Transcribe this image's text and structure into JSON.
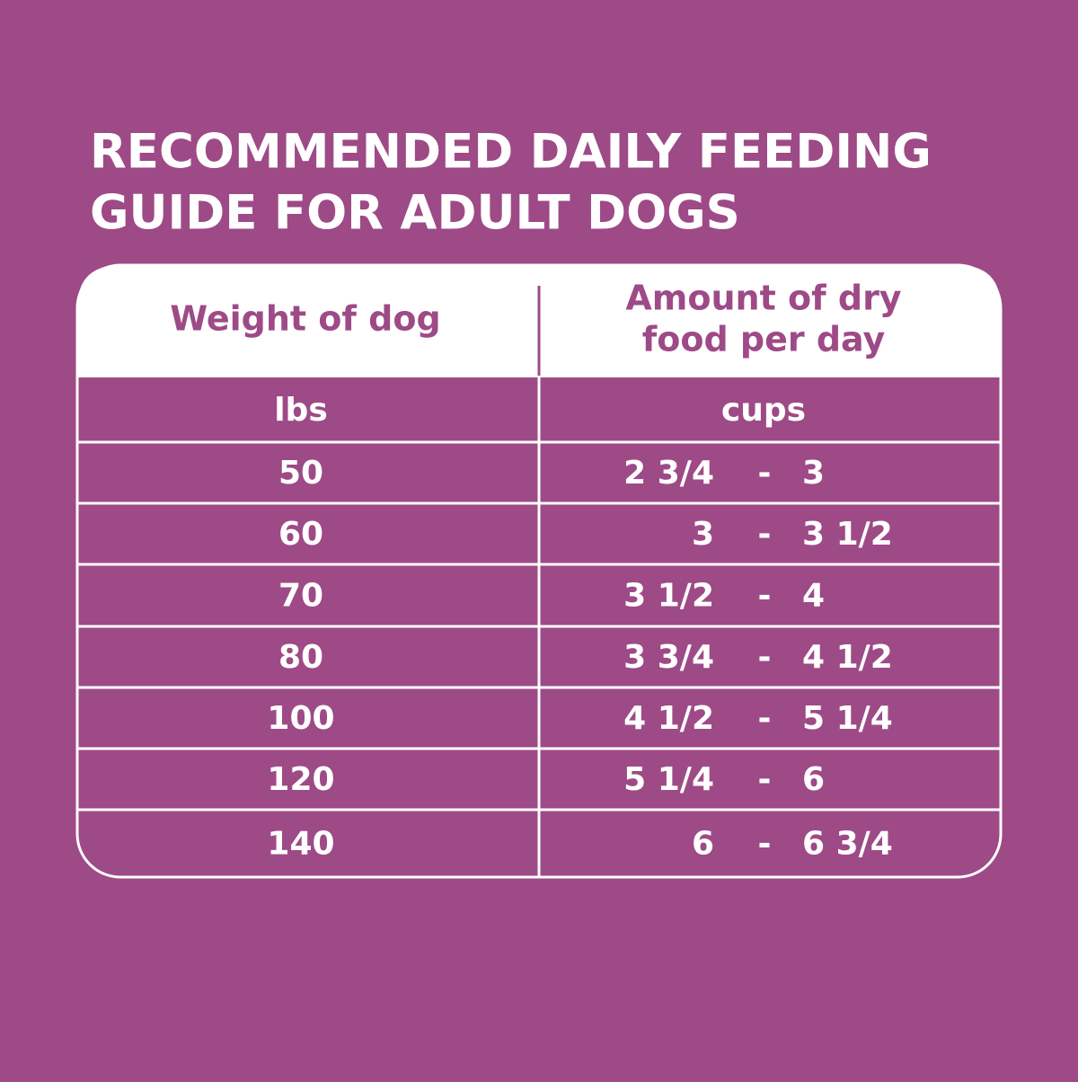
{
  "header": {
    "title_lines": [
      "RECOMMENDED DAILY FEEDING",
      "GUIDE FOR ADULT DOGS"
    ]
  },
  "table": {
    "columns": [
      [
        "Weight of dog"
      ],
      [
        "Amount of dry",
        "food per day"
      ]
    ],
    "units": [
      "lbs",
      "cups"
    ],
    "separator": "-",
    "rows": [
      {
        "weight": 50,
        "from": "2 3/4",
        "to": "3"
      },
      {
        "weight": 60,
        "from": "3",
        "to": "3 1/2"
      },
      {
        "weight": 70,
        "from": "3 1/2",
        "to": "4"
      },
      {
        "weight": 80,
        "from": "3 3/4",
        "to": "4 1/2"
      },
      {
        "weight": 100,
        "from": "4 1/2",
        "to": "5 1/4"
      },
      {
        "weight": 120,
        "from": "5 1/4",
        "to": "6"
      },
      {
        "weight": 140,
        "from": "6",
        "to": "6 3/4"
      }
    ]
  }
}
